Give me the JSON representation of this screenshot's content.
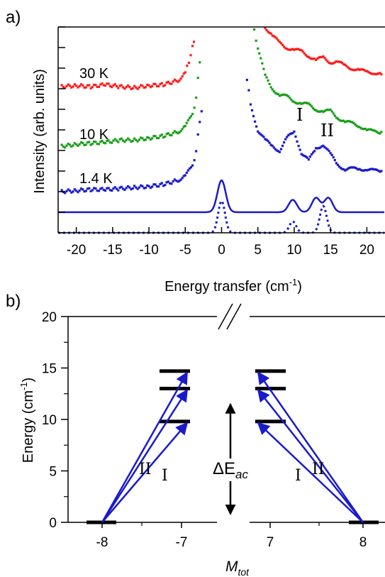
{
  "colors": {
    "red": "#ff1a1a",
    "green": "#1a9e1a",
    "blue": "#1a1acc",
    "axis": "#000000"
  },
  "chart_data": [
    {
      "panel_label": "a)",
      "type": "line",
      "xlabel": "Energy transfer (cm",
      "xlabel_sup": "-1",
      "xlabel_close": ")",
      "ylabel": "Intensity (arb. units)",
      "xlim": [
        -22.5,
        22.5
      ],
      "ylim": [
        0,
        10
      ],
      "x_ticks": [
        -20,
        -15,
        -10,
        -5,
        0,
        5,
        10,
        15,
        20
      ],
      "y_tick_values": [
        0,
        1,
        2,
        3,
        4,
        5,
        6,
        7,
        8,
        9,
        10
      ],
      "scale": "linear",
      "grid": false,
      "peak_labels": [
        "I",
        "II"
      ],
      "series": [
        {
          "name": "30 K",
          "color": "red",
          "style": "dots",
          "x": [
            -22,
            -20,
            -18,
            -16,
            -14,
            -12,
            -10,
            -8,
            -6,
            -5,
            -4.5,
            -4,
            -3.6,
            6,
            7,
            8,
            9,
            10,
            11,
            12,
            13,
            14,
            15,
            16,
            17,
            18,
            19,
            20,
            21,
            22
          ],
          "y": [
            7.1,
            7.15,
            7.1,
            7.2,
            7.1,
            7.05,
            7.15,
            7.2,
            7.4,
            7.8,
            8.3,
            9.0,
            9.4,
            10.0,
            9.6,
            9.2,
            9.0,
            8.9,
            8.8,
            8.6,
            8.4,
            8.5,
            8.3,
            8.3,
            8.1,
            8.0,
            7.9,
            7.8,
            7.8,
            7.7
          ]
        },
        {
          "name": "10 K",
          "color": "green",
          "style": "dots",
          "x": [
            -22,
            -20,
            -18,
            -16,
            -14,
            -12,
            -10,
            -8,
            -6,
            -5,
            -4,
            -3.5,
            -3,
            -2.8,
            4.5,
            5,
            6,
            7,
            8,
            9,
            10,
            11,
            12,
            13,
            14,
            15,
            16,
            17,
            18,
            19,
            20,
            21,
            22
          ],
          "y": [
            4.2,
            4.3,
            4.35,
            4.4,
            4.5,
            4.5,
            4.6,
            4.7,
            4.9,
            5.2,
            5.7,
            6.6,
            8.3,
            9.1,
            9.8,
            9.0,
            7.6,
            7.0,
            6.7,
            6.6,
            6.4,
            6.3,
            6.2,
            6.0,
            5.9,
            5.9,
            5.6,
            5.4,
            5.3,
            5.2,
            5.0,
            4.9,
            4.9
          ]
        },
        {
          "name": "1.4 K",
          "color": "blue",
          "style": "dots",
          "x": [
            -22,
            -20,
            -18,
            -16,
            -14,
            -12,
            -10,
            -8,
            -6,
            -5,
            -4,
            -3.5,
            -3,
            -2.5,
            3.5,
            4,
            5,
            6,
            7,
            8,
            9,
            10,
            11,
            12,
            13,
            14,
            15,
            16,
            17,
            18,
            19,
            20,
            21,
            22
          ],
          "y": [
            2.0,
            2.05,
            2.1,
            2.1,
            2.15,
            2.2,
            2.25,
            2.35,
            2.55,
            2.8,
            3.2,
            4.0,
            5.4,
            6.5,
            7.5,
            6.2,
            5.0,
            4.5,
            4.2,
            4.0,
            4.6,
            4.9,
            3.9,
            3.5,
            4.1,
            4.3,
            3.8,
            3.3,
            3.1,
            3.1,
            3.1,
            3.1,
            3.0,
            3.0
          ]
        },
        {
          "name": "",
          "color": "blue",
          "style": "solid",
          "peaks": [
            {
              "center": 0,
              "amp": 1.55,
              "width": 0.85
            },
            {
              "center": 9.8,
              "amp": 0.6,
              "width": 0.85
            },
            {
              "center": 13,
              "amp": 0.7,
              "width": 0.85
            },
            {
              "center": 14.7,
              "amp": 0.7,
              "width": 0.85
            }
          ],
          "baseline": 1.0
        },
        {
          "name": "",
          "color": "blue",
          "style": "dotted",
          "peaks": [
            {
              "center": 0,
              "amp": 1.55,
              "width": 0.7
            },
            {
              "center": 9.8,
              "amp": 0.55,
              "width": 0.7
            },
            {
              "center": 14,
              "amp": 1.3,
              "width": 0.7
            }
          ],
          "baseline": 0.0
        }
      ]
    },
    {
      "panel_label": "b)",
      "type": "diagram",
      "ylabel": "Energy (cm",
      "ylabel_sup": "-1",
      "ylabel_close": ")",
      "xlabel": "M",
      "xlabel_sub": "tot",
      "ylim": [
        0,
        20
      ],
      "y_ticks": [
        0,
        5,
        10,
        15,
        20
      ],
      "x_tick_labels": [
        "-8",
        "-7",
        "7",
        "8"
      ],
      "levels": [
        9.8,
        13.0,
        14.7
      ],
      "ground": 0,
      "gap_label": "ΔE",
      "gap_label_sub": "ac",
      "transition_labels": [
        "I",
        "II"
      ]
    }
  ]
}
